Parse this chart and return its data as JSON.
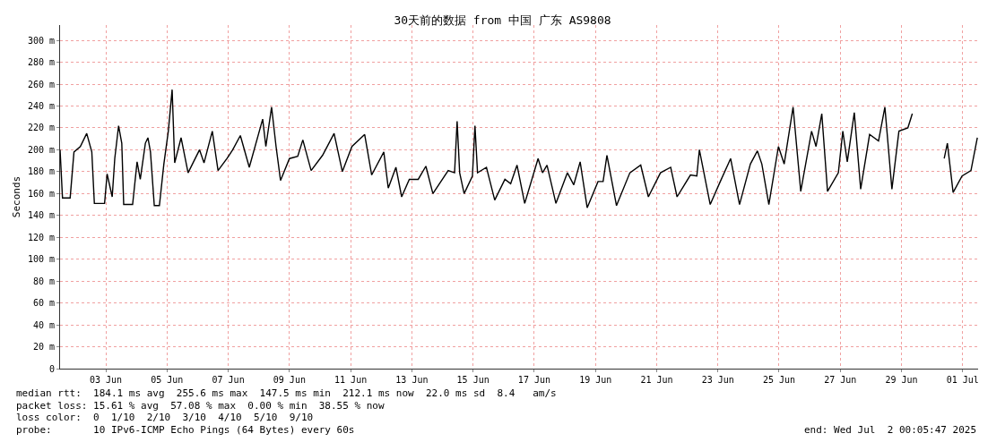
{
  "chart_data": {
    "type": "line",
    "title": "30天前的数据 from 中国 广东 AS9808",
    "ylabel": "Seconds",
    "x": [
      "2025-06-02T00:06",
      "2025-06-02T02:00",
      "2025-06-02T08:00",
      "2025-06-02T11:00",
      "2025-06-02T16:00",
      "2025-06-02T21:00",
      "2025-06-03T01:00",
      "2025-06-03T03:00",
      "2025-06-03T11:00",
      "2025-06-03T13:00",
      "2025-06-03T17:00",
      "2025-06-03T19:00",
      "2025-06-03T22:00",
      "2025-06-04T00:30",
      "2025-06-04T02:00",
      "2025-06-04T09:00",
      "2025-06-04T12:30",
      "2025-06-04T15:00",
      "2025-06-04T19:00",
      "2025-06-04T21:00",
      "2025-06-04T23:00",
      "2025-06-05T02:00",
      "2025-06-05T06:00",
      "2025-06-05T09:30",
      "2025-06-05T13:00",
      "2025-06-05T16:00",
      "2025-06-05T18:00",
      "2025-06-05T23:00",
      "2025-06-06T04:30",
      "2025-06-06T13:30",
      "2025-06-06T17:00",
      "2025-06-06T23:30",
      "2025-06-07T04:00",
      "2025-06-07T11:00",
      "2025-06-07T15:30",
      "2025-06-07T21:30",
      "2025-06-08T04:30",
      "2025-06-08T15:00",
      "2025-06-08T17:30",
      "2025-06-08T22:00",
      "2025-06-09T01:30",
      "2025-06-09T05:00",
      "2025-06-09T12:00",
      "2025-06-09T18:30",
      "2025-06-09T22:30",
      "2025-06-10T05:00",
      "2025-06-10T14:00",
      "2025-06-10T23:00",
      "2025-06-11T05:30",
      "2025-06-11T13:00",
      "2025-06-11T23:00",
      "2025-06-12T04:30",
      "2025-06-12T14:00",
      "2025-06-12T17:30",
      "2025-06-12T23:30",
      "2025-06-13T04:00",
      "2025-06-13T10:00",
      "2025-06-13T17:00",
      "2025-06-13T23:00",
      "2025-06-14T04:30",
      "2025-06-14T16:30",
      "2025-06-14T21:30",
      "2025-06-14T23:30",
      "2025-06-15T01:30",
      "2025-06-15T05:00",
      "2025-06-15T11:30",
      "2025-06-15T13:30",
      "2025-06-15T15:30",
      "2025-06-15T22:30",
      "2025-06-16T05:00",
      "2025-06-16T13:00",
      "2025-06-16T17:30",
      "2025-06-16T22:30",
      "2025-06-17T04:30",
      "2025-06-17T15:00",
      "2025-06-17T18:30",
      "2025-06-17T22:00",
      "2025-06-18T05:00",
      "2025-06-18T14:00",
      "2025-06-18T19:00",
      "2025-06-19T00:00",
      "2025-06-19T05:30",
      "2025-06-19T14:00",
      "2025-06-19T18:00",
      "2025-06-19T21:00",
      "2025-06-20T04:30",
      "2025-06-20T15:00",
      "2025-06-20T23:30",
      "2025-06-21T05:30",
      "2025-06-21T15:00",
      "2025-06-21T23:00",
      "2025-06-22T04:00",
      "2025-06-22T14:30",
      "2025-06-22T19:30",
      "2025-06-22T21:30",
      "2025-06-23T06:00",
      "2025-06-23T13:30",
      "2025-06-23T22:00",
      "2025-06-24T05:00",
      "2025-06-24T13:30",
      "2025-06-24T19:00",
      "2025-06-24T22:30",
      "2025-06-25T04:00",
      "2025-06-25T11:30",
      "2025-06-25T16:00",
      "2025-06-25T23:00",
      "2025-06-26T05:00",
      "2025-06-26T13:30",
      "2025-06-26T17:00",
      "2025-06-26T21:30",
      "2025-06-27T02:00",
      "2025-06-27T10:30",
      "2025-06-27T14:00",
      "2025-06-27T17:30",
      "2025-06-27T23:00",
      "2025-06-28T04:00",
      "2025-06-28T11:00",
      "2025-06-28T18:00",
      "2025-06-28T23:00",
      "2025-06-29T04:30",
      "2025-06-29T10:00",
      "2025-06-29T17:00",
      "2025-06-29T20:30",
      "2025-06-30T08:00",
      "2025-06-30T21:30",
      "2025-07-01T00:00",
      "2025-07-01T04:30",
      "2025-07-01T11:30",
      "2025-07-01T18:30",
      "2025-07-01T23:30"
    ],
    "series": [
      {
        "color": "#000000",
        "values": [
          200,
          156,
          156,
          198,
          203,
          215,
          198,
          151,
          151,
          178,
          157,
          192,
          222,
          206,
          150,
          150,
          189,
          173,
          206,
          211,
          198,
          149,
          149,
          187,
          217,
          255,
          188,
          211,
          179,
          200,
          188,
          217,
          181,
          192,
          200,
          213,
          184,
          228,
          203,
          239,
          203,
          172,
          192,
          194,
          209,
          181,
          195,
          215,
          180,
          203,
          214,
          177,
          198,
          165,
          184,
          157,
          173,
          173,
          185,
          160,
          181,
          179,
          226,
          179,
          160,
          176,
          222,
          179,
          184,
          154,
          173,
          169,
          186,
          151,
          192,
          179,
          186,
          151,
          179,
          168,
          189,
          147,
          171,
          171,
          195,
          149,
          179,
          186,
          157,
          179,
          184,
          157,
          177,
          176,
          200,
          150,
          170,
          192,
          150,
          187,
          199,
          187,
          150,
          203,
          187,
          239,
          162,
          217,
          203,
          233,
          162,
          179,
          217,
          189,
          234,
          164,
          214,
          208,
          239,
          164,
          217,
          220,
          233,
          null,
          192,
          206,
          161,
          176,
          181,
          211
        ]
      }
    ],
    "xlim": [
      "2025-06-02T00:06",
      "2025-07-02T00:06"
    ],
    "xticks": [
      {
        "value": "2025-06-03T12:00",
        "label": "03 Jun"
      },
      {
        "value": "2025-06-05T12:00",
        "label": "05 Jun"
      },
      {
        "value": "2025-06-07T12:00",
        "label": "07 Jun"
      },
      {
        "value": "2025-06-09T12:00",
        "label": "09 Jun"
      },
      {
        "value": "2025-06-11T12:00",
        "label": "11 Jun"
      },
      {
        "value": "2025-06-13T12:00",
        "label": "13 Jun"
      },
      {
        "value": "2025-06-15T12:00",
        "label": "15 Jun"
      },
      {
        "value": "2025-06-17T12:00",
        "label": "17 Jun"
      },
      {
        "value": "2025-06-19T12:00",
        "label": "19 Jun"
      },
      {
        "value": "2025-06-21T12:00",
        "label": "21 Jun"
      },
      {
        "value": "2025-06-23T12:00",
        "label": "23 Jun"
      },
      {
        "value": "2025-06-25T12:00",
        "label": "25 Jun"
      },
      {
        "value": "2025-06-27T12:00",
        "label": "27 Jun"
      },
      {
        "value": "2025-06-29T12:00",
        "label": "29 Jun"
      },
      {
        "value": "2025-07-01T12:00",
        "label": "01 Jul"
      }
    ],
    "ylim": [
      0,
      314
    ],
    "yticks": [
      0,
      {
        "value": 20,
        "label": "20 m"
      },
      {
        "value": 40,
        "label": "40 m"
      },
      {
        "value": 60,
        "label": "60 m"
      },
      {
        "value": 80,
        "label": "80 m"
      },
      {
        "value": 100,
        "label": "100 m"
      },
      {
        "value": 120,
        "label": "120 m"
      },
      {
        "value": 140,
        "label": "140 m"
      },
      {
        "value": 160,
        "label": "160 m"
      },
      {
        "value": 180,
        "label": "180 m"
      },
      {
        "value": 200,
        "label": "200 m"
      },
      {
        "value": 220,
        "label": "220 m"
      },
      {
        "value": 240,
        "label": "240 m"
      },
      {
        "value": 260,
        "label": "260 m"
      },
      {
        "value": 280,
        "label": "280 m"
      },
      {
        "value": 300,
        "label": "300 m"
      }
    ],
    "grid": true,
    "marker": "none",
    "line_style": "solid",
    "annotations": [
      "median rtt:  184.1 ms avg  255.6 ms max  147.5 ms min  212.1 ms now  22.0 ms sd  8.4   am/s",
      "packet loss: 15.61 % avg  57.08 % max  0.00 % min  38.55 % now",
      "loss color:  0  1/10  2/10  3/10  4/10  5/10  9/10",
      "probe:       10 IPv6-ICMP Echo Pings (64 Bytes) every 60s",
      "end: Wed Jul  2 00:05:47 2025"
    ]
  }
}
